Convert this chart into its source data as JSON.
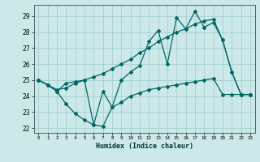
{
  "xlabel": "Humidex (Indice chaleur)",
  "bg_color": "#cce8e8",
  "grid_color": "#99cccc",
  "line_color": "#006666",
  "xlim": [
    -0.5,
    23.5
  ],
  "ylim": [
    21.7,
    29.7
  ],
  "yticks": [
    22,
    23,
    24,
    25,
    26,
    27,
    28,
    29
  ],
  "xticks": [
    0,
    1,
    2,
    3,
    4,
    5,
    6,
    7,
    8,
    9,
    10,
    11,
    12,
    13,
    14,
    15,
    16,
    17,
    18,
    19,
    20,
    21,
    22,
    23
  ],
  "series1_x": [
    0,
    1,
    2,
    3,
    4,
    5,
    6,
    7,
    8,
    9,
    10,
    11,
    12,
    13,
    14,
    15,
    16,
    17,
    18,
    19,
    20,
    21,
    22,
    23
  ],
  "series1_y": [
    25.0,
    24.7,
    24.3,
    24.8,
    24.9,
    25.0,
    22.2,
    24.3,
    23.3,
    25.0,
    25.5,
    25.9,
    27.4,
    28.1,
    26.0,
    28.9,
    28.2,
    29.3,
    28.3,
    28.6,
    27.5,
    25.5,
    24.1,
    24.1
  ],
  "series2_x": [
    0,
    1,
    2,
    3,
    4,
    5,
    6,
    7,
    8,
    9,
    10,
    11,
    12,
    13,
    14,
    15,
    16,
    17,
    18,
    19,
    20,
    21,
    22,
    23
  ],
  "series2_y": [
    25.0,
    24.7,
    24.3,
    23.5,
    22.9,
    22.5,
    22.2,
    22.1,
    23.3,
    23.6,
    24.0,
    24.2,
    24.4,
    24.5,
    24.6,
    24.7,
    24.8,
    24.9,
    25.0,
    25.1,
    24.1,
    24.1,
    24.1,
    24.1
  ],
  "series3_x": [
    0,
    1,
    2,
    3,
    4,
    5,
    6,
    7,
    8,
    9,
    10,
    11,
    12,
    13,
    14,
    15,
    16,
    17,
    18,
    19,
    20,
    21,
    22,
    23
  ],
  "series3_y": [
    25.0,
    24.7,
    24.4,
    24.5,
    24.8,
    25.0,
    25.2,
    25.4,
    25.7,
    26.0,
    26.3,
    26.7,
    27.0,
    27.4,
    27.7,
    28.0,
    28.2,
    28.5,
    28.7,
    28.8,
    27.5,
    25.5,
    24.1,
    24.1
  ]
}
